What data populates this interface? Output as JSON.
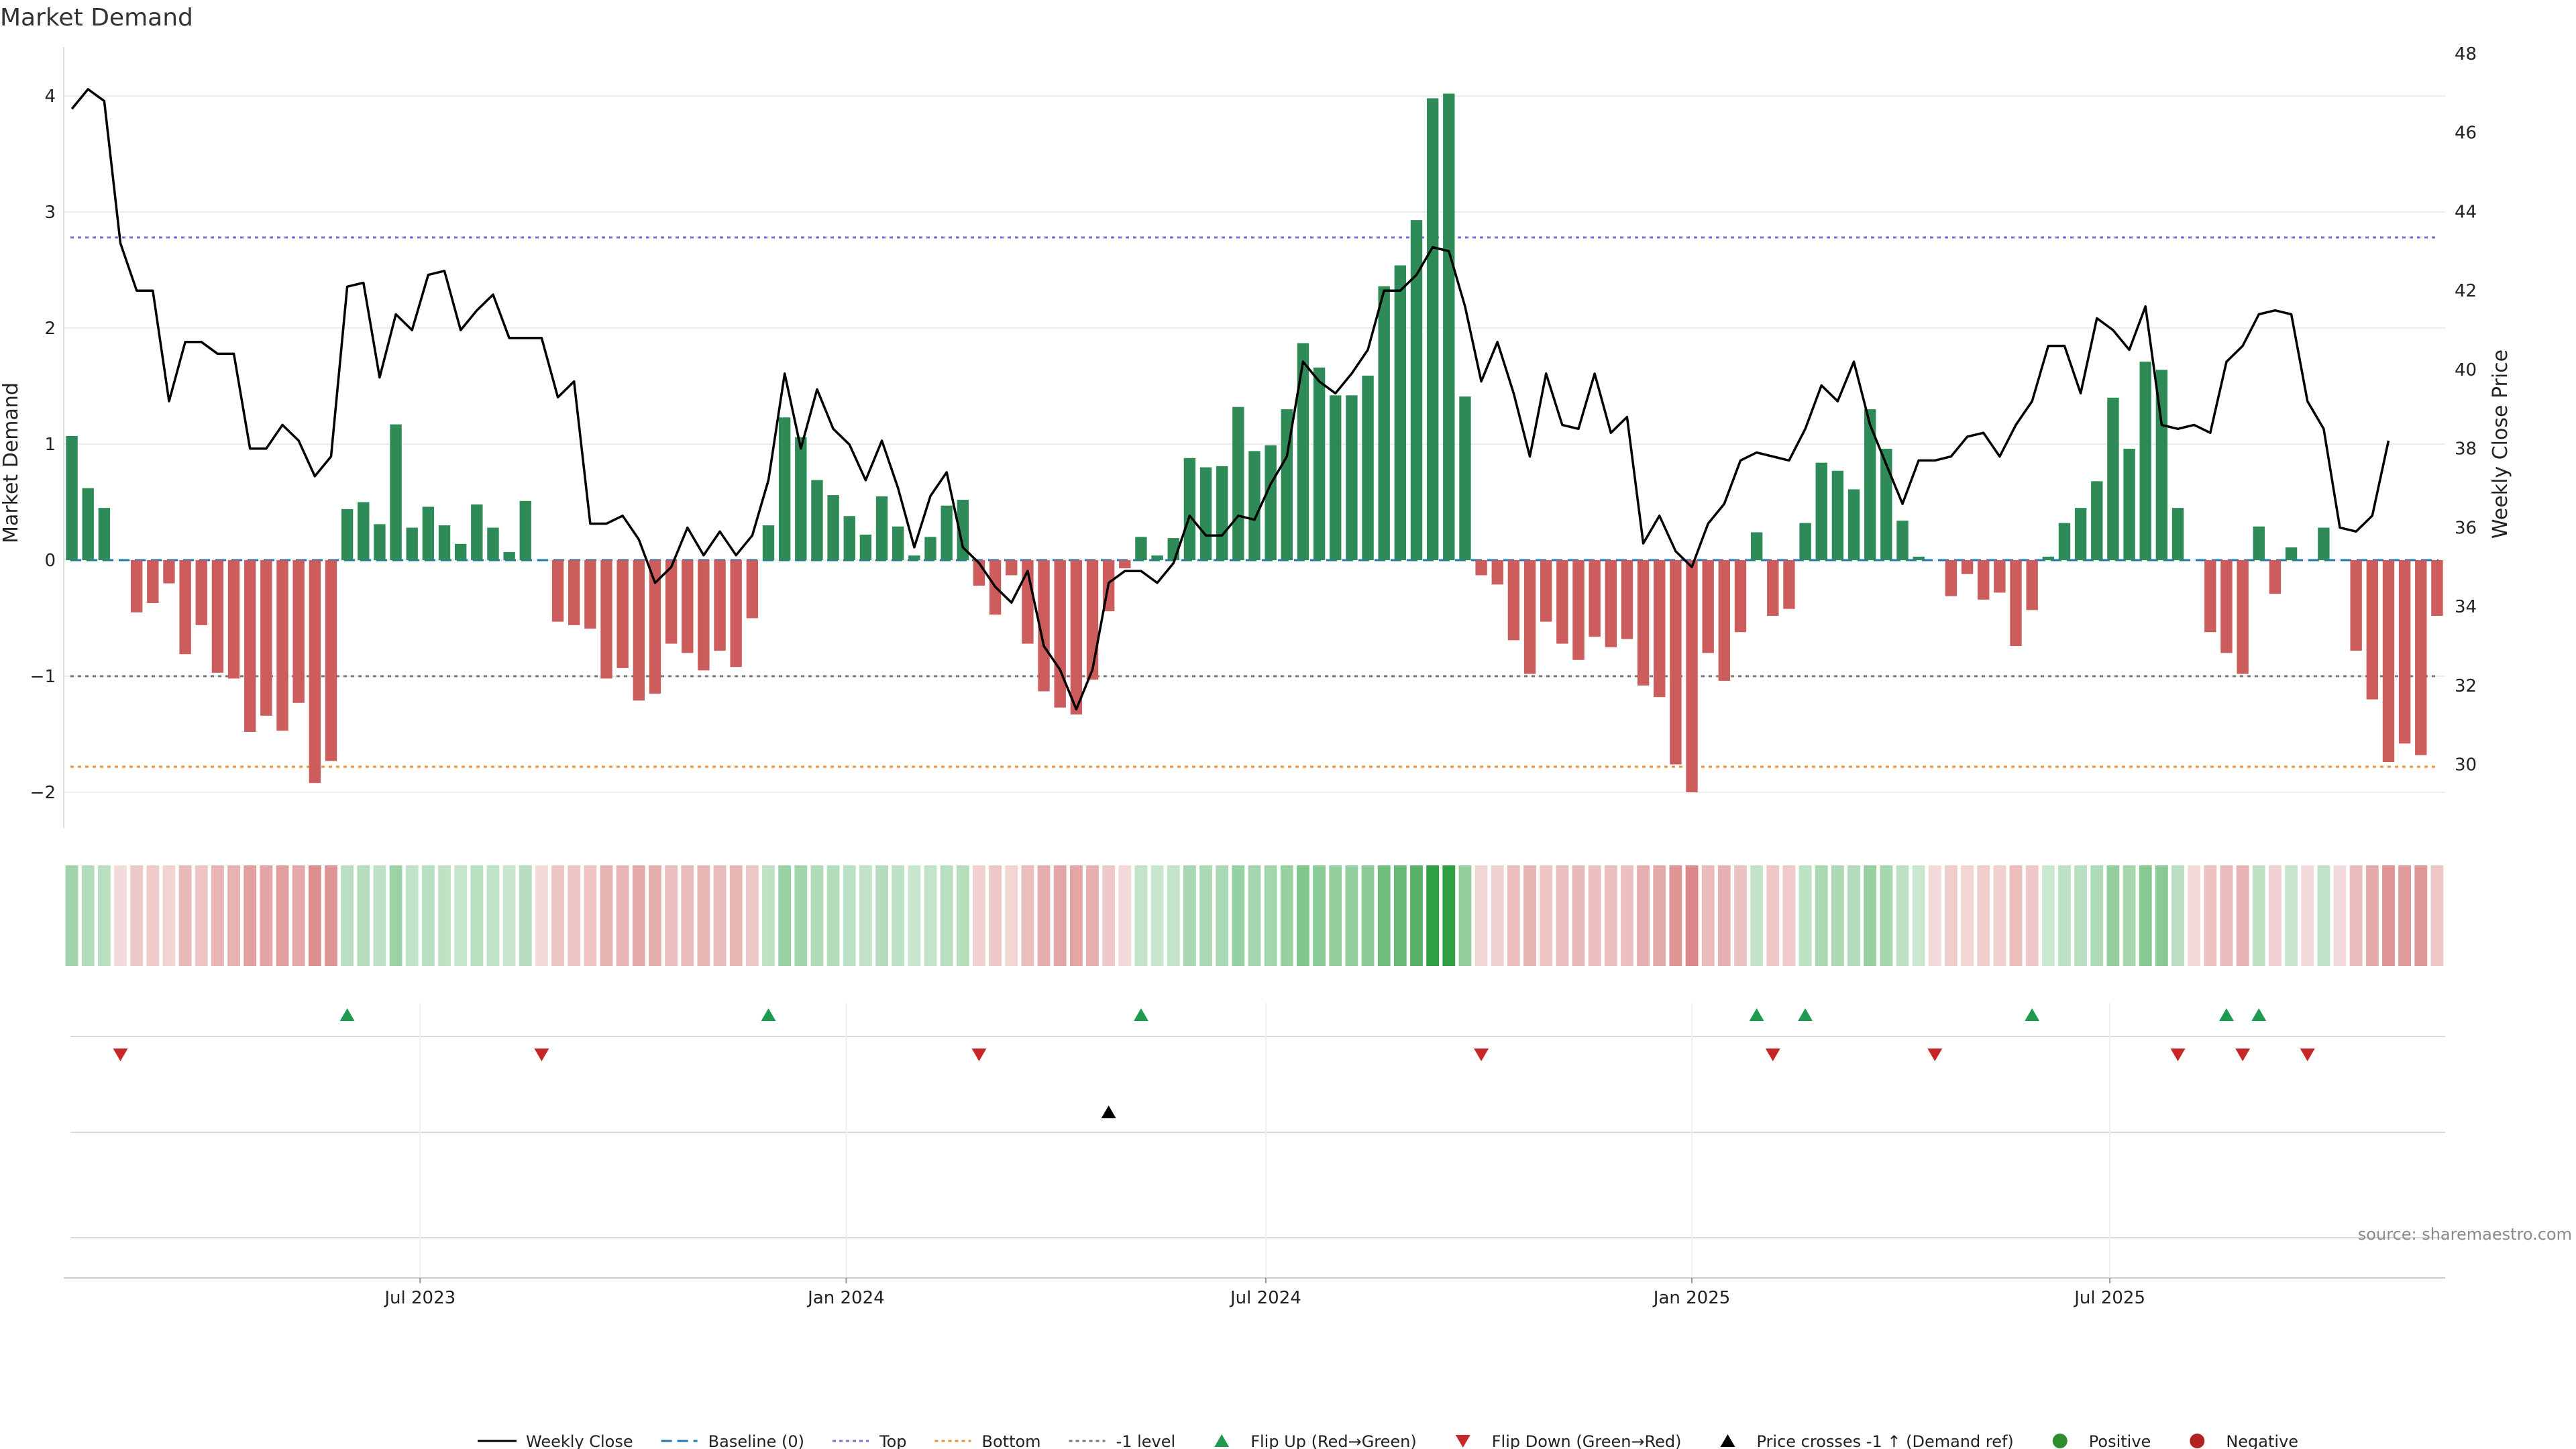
{
  "chart_data": {
    "type": "bar",
    "title": "Market Demand",
    "ylabel_left": "Market Demand",
    "ylabel_right": "Weekly Close Price",
    "ylim_left": [
      -2.3,
      4.4
    ],
    "ylim_right": [
      29.4,
      48
    ],
    "yticks_left": [
      4,
      3,
      2,
      1,
      0,
      -1,
      -2
    ],
    "ytick_labels_left": [
      "4",
      "3",
      "2",
      "1",
      "0",
      "−1",
      "−2"
    ],
    "yticks_right": [
      48,
      46,
      44,
      42,
      40,
      38,
      36,
      34,
      32,
      30
    ],
    "ytick_labels_right": [
      "48",
      "46",
      "44",
      "42",
      "40",
      "38",
      "36",
      "34",
      "32",
      "30"
    ],
    "x_tick_labels": [
      {
        "index": 21.5,
        "label": "Jul 2023"
      },
      {
        "index": 47.8,
        "label": "Jan 2024"
      },
      {
        "index": 73.7,
        "label": "Jul 2024"
      },
      {
        "index": 100.0,
        "label": "Jan 2025"
      },
      {
        "index": 125.8,
        "label": "Jul 2025"
      }
    ],
    "reference_lines": [
      {
        "name": "Baseline (0)",
        "value": 0,
        "color": "#1f77b4"
      },
      {
        "name": "Top",
        "value": 2.78,
        "color": "#7b6fcf"
      },
      {
        "name": "Bottom",
        "value": -1.78,
        "color": "#e8913a"
      },
      {
        "name": "-1 level",
        "value": -1,
        "color": "#777777"
      }
    ],
    "demand": [
      1.07,
      0.62,
      0.45,
      0,
      -0.45,
      -0.37,
      -0.2,
      -0.81,
      -0.56,
      -0.97,
      -1.02,
      -1.48,
      -1.34,
      -1.47,
      -1.23,
      -1.92,
      -1.73,
      0.44,
      0.5,
      0.31,
      1.17,
      0.28,
      0.46,
      0.3,
      0.14,
      0.48,
      0.28,
      0.07,
      0.51,
      0,
      -0.53,
      -0.56,
      -0.59,
      -1.02,
      -0.93,
      -1.21,
      -1.15,
      -0.72,
      -0.8,
      -0.95,
      -0.78,
      -0.92,
      -0.5,
      0.3,
      1.23,
      1.06,
      0.69,
      0.56,
      0.38,
      0.22,
      0.55,
      0.29,
      0.04,
      0.2,
      0.47,
      0.52,
      -0.22,
      -0.47,
      -0.13,
      -0.72,
      -1.13,
      -1.27,
      -1.33,
      -1.03,
      -0.44,
      -0.07,
      0.2,
      0.04,
      0.19,
      0.88,
      0.8,
      0.81,
      1.32,
      0.94,
      0.99,
      1.3,
      1.87,
      1.66,
      1.42,
      1.42,
      1.59,
      2.36,
      2.54,
      2.93,
      3.98,
      4.02,
      1.41,
      -0.13,
      -0.21,
      -0.69,
      -0.98,
      -0.53,
      -0.72,
      -0.86,
      -0.66,
      -0.75,
      -0.68,
      -1.08,
      -1.18,
      -1.76,
      -2.0,
      -0.8,
      -1.04,
      -0.62,
      0.24,
      -0.48,
      -0.42,
      0.32,
      0.84,
      0.77,
      0.61,
      1.3,
      0.96,
      0.34,
      0.03,
      0,
      -0.31,
      -0.12,
      -0.34,
      -0.28,
      -0.74,
      -0.43,
      0.03,
      0.32,
      0.45,
      0.68,
      1.4,
      0.96,
      1.71,
      1.64,
      0.45,
      0,
      -0.62,
      -0.8,
      -0.98,
      0.29,
      -0.29,
      0.11,
      0,
      0.28,
      0,
      -0.78,
      -1.2,
      -1.74,
      -1.58,
      -1.68,
      -0.48
    ],
    "weekly_close": [
      46.6,
      47.1,
      46.8,
      43.2,
      42.0,
      42.0,
      39.2,
      40.7,
      40.7,
      40.4,
      40.4,
      38.0,
      38.0,
      38.6,
      38.2,
      37.3,
      37.8,
      42.1,
      42.2,
      39.8,
      41.4,
      41.0,
      42.4,
      42.5,
      41.0,
      41.5,
      41.9,
      40.8,
      40.8,
      40.8,
      39.3,
      39.7,
      36.1,
      36.1,
      36.3,
      35.7,
      34.6,
      35.0,
      36.0,
      35.3,
      35.9,
      35.3,
      35.8,
      37.2,
      39.9,
      38.0,
      39.5,
      38.5,
      38.1,
      37.2,
      38.2,
      37.0,
      35.5,
      36.8,
      37.4,
      35.5,
      35.1,
      34.5,
      34.1,
      34.9,
      33.0,
      32.4,
      31.4,
      32.4,
      34.6,
      34.9,
      34.9,
      34.6,
      35.1,
      36.3,
      35.8,
      35.8,
      36.3,
      36.2,
      37.1,
      37.8,
      40.2,
      39.7,
      39.4,
      39.9,
      40.5,
      42.0,
      42.0,
      42.4,
      43.1,
      43.0,
      41.6,
      39.7,
      40.7,
      39.4,
      37.8,
      39.9,
      38.6,
      38.5,
      39.9,
      38.4,
      38.8,
      35.6,
      36.3,
      35.4,
      35.0,
      36.1,
      36.6,
      37.7,
      37.9,
      37.8,
      37.7,
      38.5,
      39.6,
      39.2,
      40.2,
      38.6,
      37.6,
      36.6,
      37.7,
      37.7,
      37.8,
      38.3,
      38.4,
      37.8,
      38.6,
      39.2,
      40.6,
      40.6,
      39.4,
      41.3,
      41.0,
      40.5,
      41.6,
      38.6,
      38.5,
      38.6,
      38.4,
      40.2,
      40.6,
      41.4,
      41.5,
      41.4,
      39.2,
      38.5,
      36.0,
      35.9,
      36.3,
      38.2
    ],
    "color_strip_label": "demand heat strip",
    "signals": {
      "flip_up": [
        17,
        43,
        66,
        104,
        107,
        121,
        133,
        135
      ],
      "flip_down": [
        3,
        29,
        56,
        87,
        105,
        115,
        130,
        134,
        138
      ],
      "price_cross_up": [
        64
      ]
    },
    "source": "source: sharemaestro.com",
    "legend": [
      {
        "label": "Weekly Close",
        "symbol": "line",
        "color": "#000000"
      },
      {
        "label": "Baseline (0)",
        "symbol": "dash",
        "color": "#1f77b4"
      },
      {
        "label": "Top",
        "symbol": "dot",
        "color": "#7b6fcf"
      },
      {
        "label": "Bottom",
        "symbol": "dot",
        "color": "#e8913a"
      },
      {
        "label": "-1 level",
        "symbol": "dot",
        "color": "#777777"
      },
      {
        "label": "Flip Up (Red→Green)",
        "symbol": "tri-up",
        "color": "#1f9a4e"
      },
      {
        "label": "Flip Down (Green→Red)",
        "symbol": "tri-down",
        "color": "#c62828"
      },
      {
        "label": "Price crosses -1 ↑ (Demand ref)",
        "symbol": "tri-up",
        "color": "#000000"
      },
      {
        "label": "Positive",
        "symbol": "circle",
        "color": "#2e8b2e"
      },
      {
        "label": "Negative",
        "symbol": "circle",
        "color": "#b22222"
      }
    ],
    "colors": {
      "positive_bar": "#2e8b57",
      "negative_bar": "#cd5c5c",
      "line": "#000000",
      "grid": "#e8e8e8",
      "flip_up": "#1f9a4e",
      "flip_down": "#c62828"
    }
  }
}
